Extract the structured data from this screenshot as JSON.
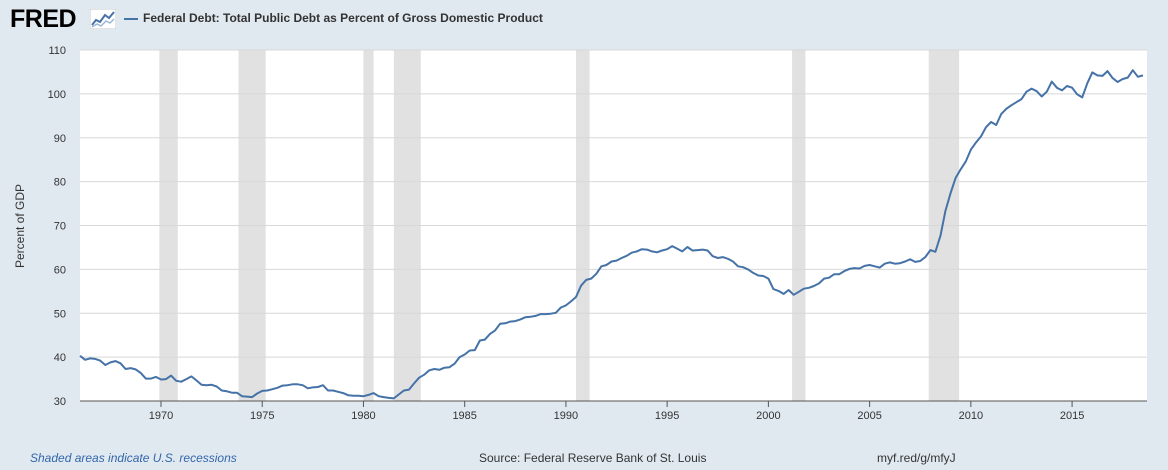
{
  "header": {
    "logo": "FRED",
    "legend_label": "Federal Debt: Total Public Debt as Percent of Gross Domestic Product"
  },
  "colors": {
    "series": "#4572a7",
    "recession": "#e1e1e1",
    "background": "#e1e9f0",
    "plot_bg": "#ffffff",
    "grid": "#d8d8d8"
  },
  "footer": {
    "recessions_note": "Shaded areas indicate U.S. recessions",
    "source": "Source: Federal Reserve Bank of St. Louis",
    "url": "myf.red/g/mfyJ"
  },
  "chart_data": {
    "type": "line",
    "title": "Federal Debt: Total Public Debt as Percent of Gross Domestic Product",
    "xlabel": "",
    "ylabel": "Percent of GDP",
    "xlim": [
      1966.0,
      2018.7
    ],
    "ylim": [
      30,
      110
    ],
    "yticks": [
      30,
      40,
      50,
      60,
      70,
      80,
      90,
      100,
      110
    ],
    "xticks": [
      1970,
      1975,
      1980,
      1985,
      1990,
      1995,
      2000,
      2005,
      2010,
      2015
    ],
    "grid": true,
    "legend": "top-left",
    "recessions": [
      [
        1969.92,
        1970.83
      ],
      [
        1973.83,
        1975.17
      ],
      [
        1980.0,
        1980.5
      ],
      [
        1981.5,
        1982.83
      ],
      [
        1990.5,
        1991.17
      ],
      [
        2001.17,
        2001.83
      ],
      [
        2007.92,
        2009.42
      ]
    ],
    "series": [
      {
        "name": "Federal Debt: Total Public Debt as Percent of Gross Domestic Product",
        "x": [
          1966.0,
          1966.25,
          1966.5,
          1966.75,
          1967.0,
          1967.25,
          1967.5,
          1967.75,
          1968.0,
          1968.25,
          1968.5,
          1968.75,
          1969.0,
          1969.25,
          1969.5,
          1969.75,
          1970.0,
          1970.25,
          1970.5,
          1970.75,
          1971.0,
          1971.25,
          1971.5,
          1971.75,
          1972.0,
          1972.25,
          1972.5,
          1972.75,
          1973.0,
          1973.25,
          1973.5,
          1973.75,
          1974.0,
          1974.25,
          1974.5,
          1974.75,
          1975.0,
          1975.25,
          1975.5,
          1975.75,
          1976.0,
          1976.25,
          1976.5,
          1976.75,
          1977.0,
          1977.25,
          1977.5,
          1977.75,
          1978.0,
          1978.25,
          1978.5,
          1978.75,
          1979.0,
          1979.25,
          1979.5,
          1979.75,
          1980.0,
          1980.25,
          1980.5,
          1980.75,
          1981.0,
          1981.25,
          1981.5,
          1981.75,
          1982.0,
          1982.25,
          1982.5,
          1982.75,
          1983.0,
          1983.25,
          1983.5,
          1983.75,
          1984.0,
          1984.25,
          1984.5,
          1984.75,
          1985.0,
          1985.25,
          1985.5,
          1985.75,
          1986.0,
          1986.25,
          1986.5,
          1986.75,
          1987.0,
          1987.25,
          1987.5,
          1987.75,
          1988.0,
          1988.25,
          1988.5,
          1988.75,
          1989.0,
          1989.25,
          1989.5,
          1989.75,
          1990.0,
          1990.25,
          1990.5,
          1990.75,
          1991.0,
          1991.25,
          1991.5,
          1991.75,
          1992.0,
          1992.25,
          1992.5,
          1992.75,
          1993.0,
          1993.25,
          1993.5,
          1993.75,
          1994.0,
          1994.25,
          1994.5,
          1994.75,
          1995.0,
          1995.25,
          1995.5,
          1995.75,
          1996.0,
          1996.25,
          1996.5,
          1996.75,
          1997.0,
          1997.25,
          1997.5,
          1997.75,
          1998.0,
          1998.25,
          1998.5,
          1998.75,
          1999.0,
          1999.25,
          1999.5,
          1999.75,
          2000.0,
          2000.25,
          2000.5,
          2000.75,
          2001.0,
          2001.25,
          2001.5,
          2001.75,
          2002.0,
          2002.25,
          2002.5,
          2002.75,
          2003.0,
          2003.25,
          2003.5,
          2003.75,
          2004.0,
          2004.25,
          2004.5,
          2004.75,
          2005.0,
          2005.25,
          2005.5,
          2005.75,
          2006.0,
          2006.25,
          2006.5,
          2006.75,
          2007.0,
          2007.25,
          2007.5,
          2007.75,
          2008.0,
          2008.25,
          2008.5,
          2008.75,
          2009.0,
          2009.25,
          2009.5,
          2009.75,
          2010.0,
          2010.25,
          2010.5,
          2010.75,
          2011.0,
          2011.25,
          2011.5,
          2011.75,
          2012.0,
          2012.25,
          2012.5,
          2012.75,
          2013.0,
          2013.25,
          2013.5,
          2013.75,
          2014.0,
          2014.25,
          2014.5,
          2014.75,
          2015.0,
          2015.25,
          2015.5,
          2015.75,
          2016.0,
          2016.25,
          2016.5,
          2016.75,
          2017.0,
          2017.25,
          2017.5,
          2017.75,
          2018.0,
          2018.25,
          2018.5
        ],
        "values": [
          40.3,
          39.4,
          39.7,
          39.6,
          39.2,
          38.2,
          38.8,
          39.1,
          38.6,
          37.3,
          37.5,
          37.2,
          36.4,
          35.1,
          35.1,
          35.5,
          34.9,
          35.0,
          35.8,
          34.6,
          34.4,
          35.0,
          35.6,
          34.7,
          33.7,
          33.6,
          33.7,
          33.3,
          32.4,
          32.2,
          31.9,
          31.9,
          31.1,
          31.0,
          30.9,
          31.7,
          32.3,
          32.4,
          32.7,
          33.0,
          33.5,
          33.6,
          33.8,
          33.8,
          33.6,
          32.9,
          33.1,
          33.2,
          33.6,
          32.4,
          32.4,
          32.1,
          31.8,
          31.3,
          31.2,
          31.2,
          31.1,
          31.4,
          31.8,
          31.1,
          30.9,
          30.7,
          30.6,
          31.5,
          32.4,
          32.6,
          34.0,
          35.3,
          36.0,
          37.0,
          37.3,
          37.1,
          37.6,
          37.7,
          38.5,
          40.0,
          40.6,
          41.5,
          41.6,
          43.8,
          44.0,
          45.3,
          46.1,
          47.6,
          47.7,
          48.1,
          48.2,
          48.6,
          49.1,
          49.2,
          49.4,
          49.8,
          49.8,
          49.9,
          50.1,
          51.3,
          51.8,
          52.7,
          53.7,
          56.3,
          57.6,
          57.9,
          59.0,
          60.7,
          61.0,
          61.8,
          62.0,
          62.6,
          63.1,
          63.8,
          64.1,
          64.6,
          64.5,
          64.1,
          63.9,
          64.3,
          64.6,
          65.3,
          64.7,
          64.1,
          65.1,
          64.3,
          64.4,
          64.5,
          64.3,
          63.0,
          62.6,
          62.8,
          62.4,
          61.8,
          60.7,
          60.5,
          60.0,
          59.2,
          58.6,
          58.5,
          57.9,
          55.5,
          55.1,
          54.4,
          55.3,
          54.2,
          54.9,
          55.6,
          55.8,
          56.2,
          56.8,
          57.9,
          58.1,
          58.9,
          58.9,
          59.6,
          60.1,
          60.3,
          60.2,
          60.8,
          61.0,
          60.7,
          60.4,
          61.3,
          61.6,
          61.3,
          61.4,
          61.8,
          62.3,
          61.7,
          61.9,
          62.8,
          64.4,
          64.0,
          67.7,
          73.4,
          77.4,
          80.9,
          82.8,
          84.6,
          87.3,
          88.9,
          90.3,
          92.4,
          93.6,
          92.9,
          95.4,
          96.6,
          97.4,
          98.1,
          98.8,
          100.5,
          101.2,
          100.6,
          99.4,
          100.5,
          102.8,
          101.4,
          100.8,
          101.8,
          101.4,
          99.9,
          99.2,
          102.4,
          104.9,
          104.2,
          104.1,
          105.2,
          103.6,
          102.7,
          103.4,
          103.7,
          105.4,
          103.9,
          104.2
        ]
      }
    ]
  }
}
